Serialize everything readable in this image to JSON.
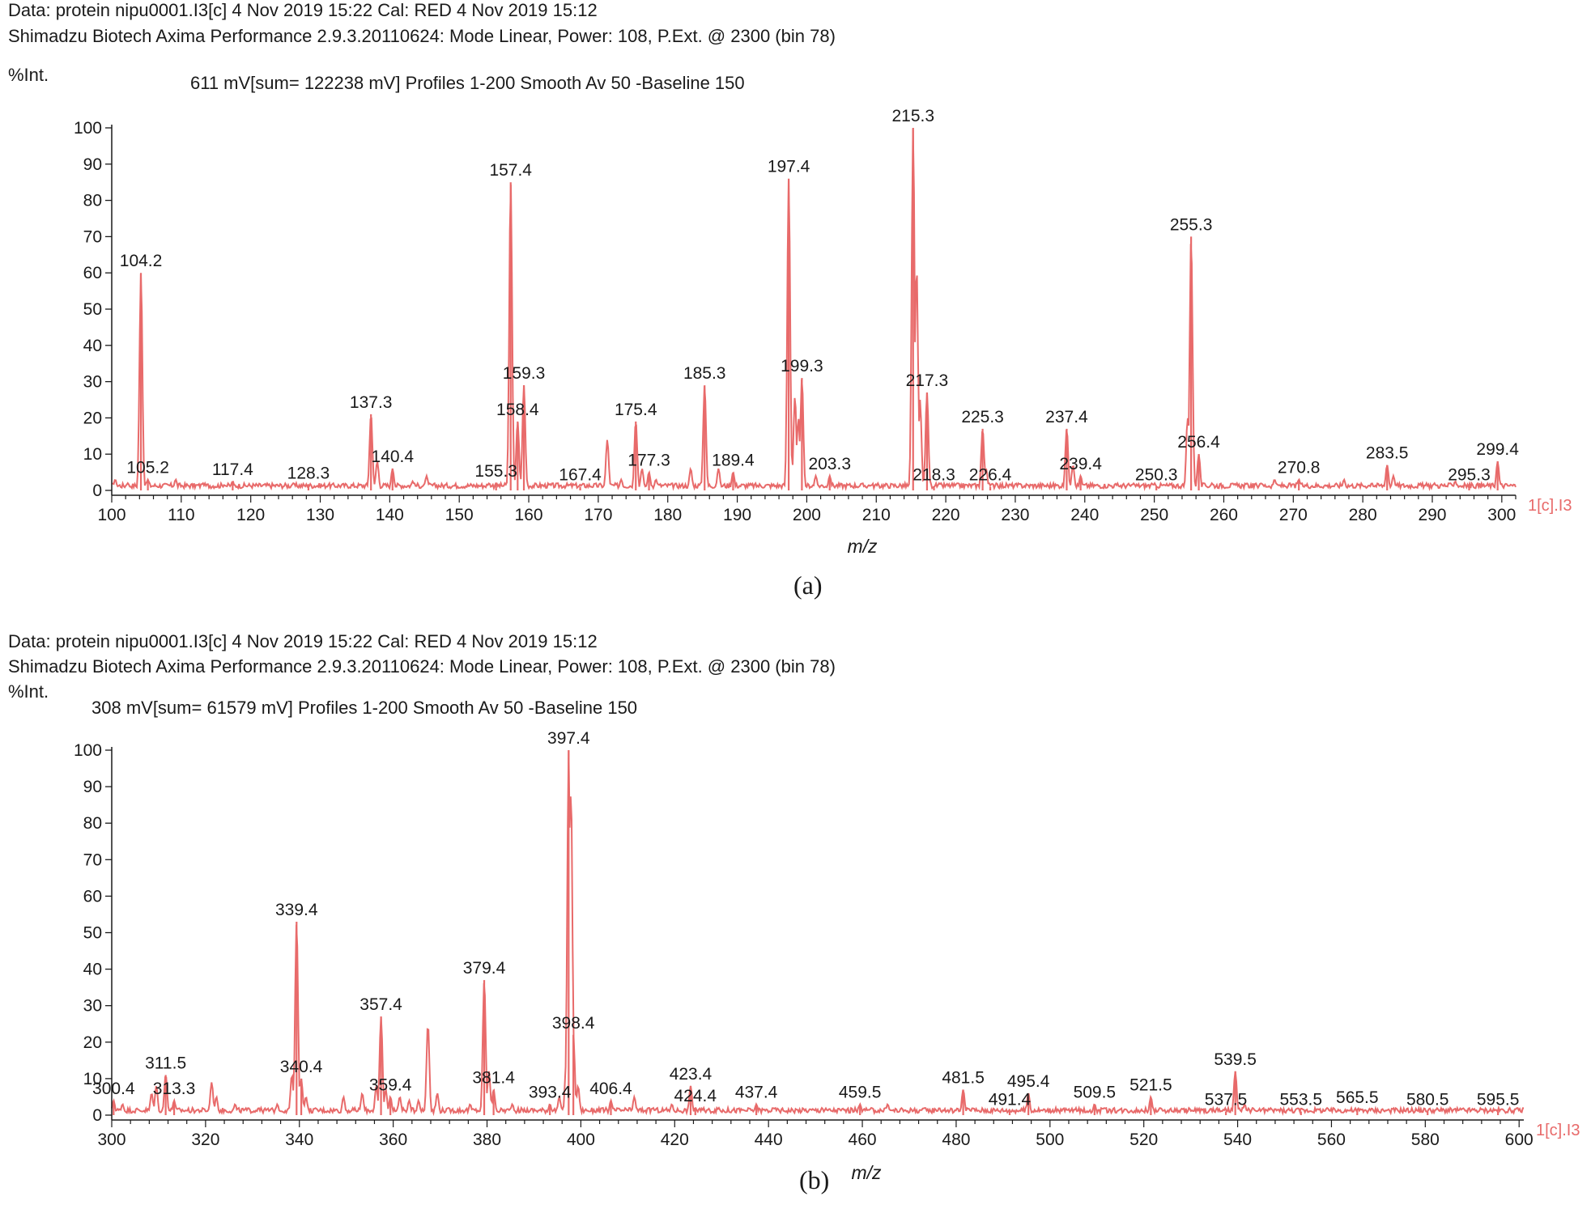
{
  "panels": [
    {
      "data_line": "Data: protein nipu0001.I3[c] 4 Nov 2019 15:22 Cal: RED 4 Nov 2019 15:12",
      "instrument_line": "Shimadzu Biotech Axima Performance 2.9.3.20110624: Mode Linear, Power: 108, P.Ext. @ 2300 (bin 78)",
      "y_label": "%Int.",
      "profile_line": "611 mV[sum= 122238 mV]  Profiles 1-200 Smooth Av 50 -Baseline 150",
      "caption": "(a)"
    },
    {
      "data_line": "Data: protein nipu0001.I3[c] 4 Nov 2019 15:22 Cal: RED 4 Nov 2019 15:12",
      "instrument_line": "Shimadzu Biotech Axima Performance 2.9.3.20110624: Mode Linear, Power: 108, P.Ext. @ 2300 (bin 78)",
      "y_label": "%Int.",
      "profile_line": "308 mV[sum= 61579 mV]  Profiles 1-200 Smooth Av 50 -Baseline 150",
      "caption": "(b)"
    }
  ],
  "colors": {
    "spectrum": "#e86a6a",
    "axis": "#1a1a1a"
  },
  "chart_data": [
    {
      "type": "line",
      "xlabel": "m/z",
      "ylabel": "%Int.",
      "xlim": [
        100,
        302
      ],
      "ylim": [
        0,
        100
      ],
      "xticks": [
        100,
        110,
        120,
        130,
        140,
        150,
        160,
        170,
        180,
        190,
        200,
        210,
        220,
        230,
        240,
        250,
        260,
        270,
        280,
        290,
        300
      ],
      "yticks": [
        0,
        10,
        20,
        30,
        40,
        50,
        60,
        70,
        80,
        90,
        100
      ],
      "series_tag": "1[c].I3",
      "grid": false,
      "peaks": [
        {
          "mz": 104.2,
          "intensity": 60,
          "label": "104.2"
        },
        {
          "mz": 105.2,
          "intensity": 3,
          "label": "105.2"
        },
        {
          "mz": 117.4,
          "intensity": 2.5,
          "label": "117.4"
        },
        {
          "mz": 128.3,
          "intensity": 1.5,
          "label": "128.3"
        },
        {
          "mz": 137.3,
          "intensity": 21,
          "label": "137.3"
        },
        {
          "mz": 140.4,
          "intensity": 6,
          "label": "140.4"
        },
        {
          "mz": 155.3,
          "intensity": 2,
          "label": "155.3"
        },
        {
          "mz": 157.4,
          "intensity": 85,
          "label": "157.4"
        },
        {
          "mz": 158.4,
          "intensity": 19,
          "label": "158.4"
        },
        {
          "mz": 159.3,
          "intensity": 29,
          "label": "159.3"
        },
        {
          "mz": 167.4,
          "intensity": 1,
          "label": "167.4"
        },
        {
          "mz": 175.4,
          "intensity": 19,
          "label": "175.4"
        },
        {
          "mz": 177.3,
          "intensity": 5,
          "label": "177.3"
        },
        {
          "mz": 185.3,
          "intensity": 29,
          "label": "185.3"
        },
        {
          "mz": 189.4,
          "intensity": 5,
          "label": "189.4"
        },
        {
          "mz": 197.4,
          "intensity": 86,
          "label": "197.4"
        },
        {
          "mz": 199.3,
          "intensity": 31,
          "label": "199.3"
        },
        {
          "mz": 203.3,
          "intensity": 4,
          "label": "203.3"
        },
        {
          "mz": 215.3,
          "intensity": 100,
          "label": "215.3"
        },
        {
          "mz": 217.3,
          "intensity": 27,
          "label": "217.3"
        },
        {
          "mz": 218.3,
          "intensity": 1,
          "label": "218.3"
        },
        {
          "mz": 225.3,
          "intensity": 17,
          "label": "225.3"
        },
        {
          "mz": 226.4,
          "intensity": 1,
          "label": "226.4"
        },
        {
          "mz": 237.4,
          "intensity": 17,
          "label": "237.4"
        },
        {
          "mz": 239.4,
          "intensity": 4,
          "label": "239.4"
        },
        {
          "mz": 250.3,
          "intensity": 1,
          "label": "250.3"
        },
        {
          "mz": 255.3,
          "intensity": 70,
          "label": "255.3"
        },
        {
          "mz": 256.4,
          "intensity": 10,
          "label": "256.4"
        },
        {
          "mz": 270.8,
          "intensity": 3,
          "label": "270.8"
        },
        {
          "mz": 283.5,
          "intensity": 7,
          "label": "283.5"
        },
        {
          "mz": 295.3,
          "intensity": 1,
          "label": "295.3"
        },
        {
          "mz": 299.4,
          "intensity": 8,
          "label": "299.4"
        }
      ],
      "minor_peaks": [
        {
          "mz": 100.5,
          "intensity": 3
        },
        {
          "mz": 102.3,
          "intensity": 2
        },
        {
          "mz": 109.2,
          "intensity": 3
        },
        {
          "mz": 111.5,
          "intensity": 1
        },
        {
          "mz": 113.1,
          "intensity": 2
        },
        {
          "mz": 116.2,
          "intensity": 1.5
        },
        {
          "mz": 121.0,
          "intensity": 1
        },
        {
          "mz": 126.1,
          "intensity": 2
        },
        {
          "mz": 131.2,
          "intensity": 1.5
        },
        {
          "mz": 138.2,
          "intensity": 8
        },
        {
          "mz": 143.3,
          "intensity": 2.5
        },
        {
          "mz": 145.3,
          "intensity": 4
        },
        {
          "mz": 154.3,
          "intensity": 2
        },
        {
          "mz": 163.2,
          "intensity": 1
        },
        {
          "mz": 171.3,
          "intensity": 14
        },
        {
          "mz": 173.3,
          "intensity": 3
        },
        {
          "mz": 176.3,
          "intensity": 6
        },
        {
          "mz": 178.3,
          "intensity": 3
        },
        {
          "mz": 183.3,
          "intensity": 6
        },
        {
          "mz": 187.3,
          "intensity": 6
        },
        {
          "mz": 198.3,
          "intensity": 26
        },
        {
          "mz": 198.8,
          "intensity": 20
        },
        {
          "mz": 201.3,
          "intensity": 4
        },
        {
          "mz": 209.3,
          "intensity": 1.5
        },
        {
          "mz": 215.8,
          "intensity": 62
        },
        {
          "mz": 216.3,
          "intensity": 25
        },
        {
          "mz": 219.3,
          "intensity": 2
        },
        {
          "mz": 225.8,
          "intensity": 6
        },
        {
          "mz": 227.3,
          "intensity": 2
        },
        {
          "mz": 238.3,
          "intensity": 7
        },
        {
          "mz": 247.3,
          "intensity": 1
        },
        {
          "mz": 254.8,
          "intensity": 20
        },
        {
          "mz": 258.3,
          "intensity": 2
        },
        {
          "mz": 261.3,
          "intensity": 1
        },
        {
          "mz": 265.3,
          "intensity": 2
        },
        {
          "mz": 267.3,
          "intensity": 3
        },
        {
          "mz": 277.3,
          "intensity": 3
        },
        {
          "mz": 281.3,
          "intensity": 2
        },
        {
          "mz": 284.4,
          "intensity": 4
        },
        {
          "mz": 290.3,
          "intensity": 2
        },
        {
          "mz": 293.3,
          "intensity": 2.5
        }
      ]
    },
    {
      "type": "line",
      "xlabel": "m/z",
      "ylabel": "%Int.",
      "xlim": [
        300,
        601
      ],
      "ylim": [
        0,
        100
      ],
      "xticks": [
        300,
        320,
        340,
        360,
        380,
        400,
        420,
        440,
        460,
        480,
        500,
        520,
        540,
        560,
        580,
        600
      ],
      "yticks": [
        0,
        10,
        20,
        30,
        40,
        50,
        60,
        70,
        80,
        90,
        100
      ],
      "series_tag": "1[c].I3",
      "grid": false,
      "peaks": [
        {
          "mz": 300.4,
          "intensity": 4,
          "label": "300.4"
        },
        {
          "mz": 311.5,
          "intensity": 11,
          "label": "311.5"
        },
        {
          "mz": 313.3,
          "intensity": 4,
          "label": "313.3"
        },
        {
          "mz": 339.4,
          "intensity": 53,
          "label": "339.4"
        },
        {
          "mz": 340.4,
          "intensity": 10,
          "label": "340.4"
        },
        {
          "mz": 357.4,
          "intensity": 27,
          "label": "357.4"
        },
        {
          "mz": 359.4,
          "intensity": 5,
          "label": "359.4"
        },
        {
          "mz": 379.4,
          "intensity": 37,
          "label": "379.4"
        },
        {
          "mz": 381.4,
          "intensity": 7,
          "label": "381.4"
        },
        {
          "mz": 393.4,
          "intensity": 3,
          "label": "393.4"
        },
        {
          "mz": 397.4,
          "intensity": 100,
          "label": "397.4"
        },
        {
          "mz": 398.4,
          "intensity": 22,
          "label": "398.4"
        },
        {
          "mz": 406.4,
          "intensity": 4,
          "label": "406.4"
        },
        {
          "mz": 423.4,
          "intensity": 8,
          "label": "423.4"
        },
        {
          "mz": 424.4,
          "intensity": 2,
          "label": "424.4"
        },
        {
          "mz": 437.4,
          "intensity": 3,
          "label": "437.4"
        },
        {
          "mz": 459.5,
          "intensity": 3,
          "label": "459.5"
        },
        {
          "mz": 481.5,
          "intensity": 7,
          "label": "481.5"
        },
        {
          "mz": 491.4,
          "intensity": 1,
          "label": "491.4"
        },
        {
          "mz": 495.4,
          "intensity": 6,
          "label": "495.4"
        },
        {
          "mz": 509.5,
          "intensity": 3,
          "label": "509.5"
        },
        {
          "mz": 521.5,
          "intensity": 5,
          "label": "521.5"
        },
        {
          "mz": 537.5,
          "intensity": 1,
          "label": "537.5"
        },
        {
          "mz": 539.5,
          "intensity": 12,
          "label": "539.5"
        },
        {
          "mz": 553.5,
          "intensity": 1,
          "label": "553.5"
        },
        {
          "mz": 565.5,
          "intensity": 1.5,
          "label": "565.5"
        },
        {
          "mz": 580.5,
          "intensity": 1,
          "label": "580.5"
        },
        {
          "mz": 595.5,
          "intensity": 1,
          "label": "595.5"
        }
      ],
      "minor_peaks": [
        {
          "mz": 302.3,
          "intensity": 3
        },
        {
          "mz": 308.5,
          "intensity": 6
        },
        {
          "mz": 309.5,
          "intensity": 8
        },
        {
          "mz": 321.3,
          "intensity": 9
        },
        {
          "mz": 322.3,
          "intensity": 5
        },
        {
          "mz": 326.3,
          "intensity": 3
        },
        {
          "mz": 331.3,
          "intensity": 2
        },
        {
          "mz": 335.3,
          "intensity": 3
        },
        {
          "mz": 338.4,
          "intensity": 11
        },
        {
          "mz": 341.4,
          "intensity": 5
        },
        {
          "mz": 349.4,
          "intensity": 5
        },
        {
          "mz": 353.4,
          "intensity": 6
        },
        {
          "mz": 356.4,
          "intensity": 8
        },
        {
          "mz": 358.4,
          "intensity": 7
        },
        {
          "mz": 361.4,
          "intensity": 5
        },
        {
          "mz": 363.4,
          "intensity": 4
        },
        {
          "mz": 365.4,
          "intensity": 4
        },
        {
          "mz": 367.4,
          "intensity": 25
        },
        {
          "mz": 369.4,
          "intensity": 6
        },
        {
          "mz": 376.4,
          "intensity": 3
        },
        {
          "mz": 380.4,
          "intensity": 12
        },
        {
          "mz": 385.4,
          "intensity": 3
        },
        {
          "mz": 395.4,
          "intensity": 5
        },
        {
          "mz": 396.9,
          "intensity": 15
        },
        {
          "mz": 397.9,
          "intensity": 90
        },
        {
          "mz": 399.4,
          "intensity": 8
        },
        {
          "mz": 411.4,
          "intensity": 5
        },
        {
          "mz": 415.4,
          "intensity": 2
        },
        {
          "mz": 419.4,
          "intensity": 3
        },
        {
          "mz": 429.4,
          "intensity": 2
        },
        {
          "mz": 441.4,
          "intensity": 2
        },
        {
          "mz": 451.4,
          "intensity": 2
        },
        {
          "mz": 465.4,
          "intensity": 3
        },
        {
          "mz": 476.4,
          "intensity": 2
        },
        {
          "mz": 483.5,
          "intensity": 2
        },
        {
          "mz": 511.5,
          "intensity": 2
        },
        {
          "mz": 523.5,
          "intensity": 2
        },
        {
          "mz": 541.5,
          "intensity": 3
        },
        {
          "mz": 548.5,
          "intensity": 1.5
        }
      ]
    }
  ]
}
